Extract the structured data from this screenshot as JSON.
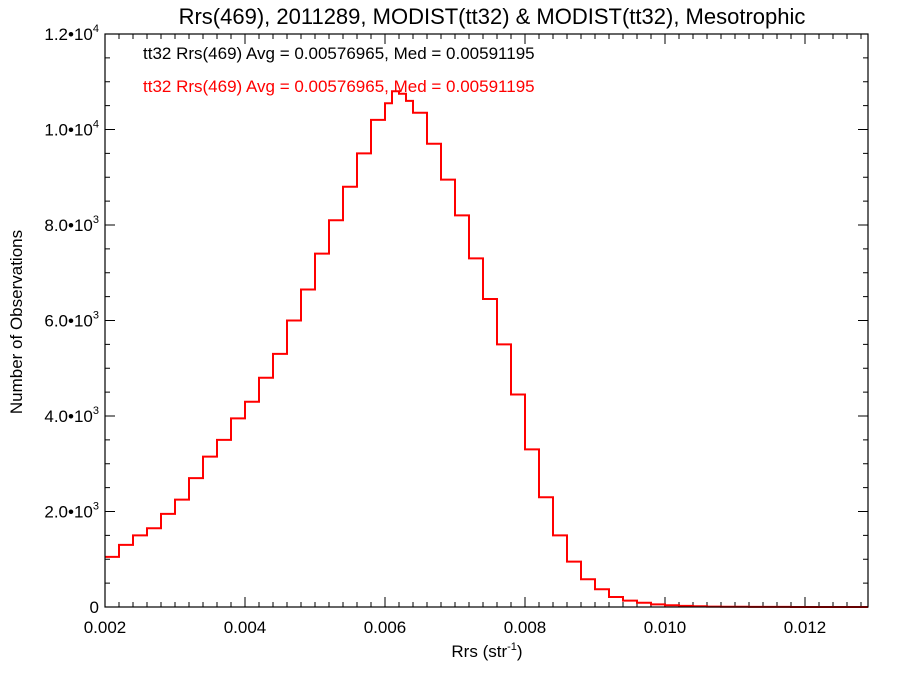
{
  "chart_data": {
    "type": "line",
    "title": "Rrs(469), 2011289, MODIST(tt32) & MODIST(tt32), Mesotrophic",
    "xlabel_main": "Rrs (str",
    "xlabel_sup": "-1",
    "xlabel_close": ")",
    "ylabel": "Number of Observations",
    "xlim": [
      0.002,
      0.0129
    ],
    "ylim": [
      0,
      12000
    ],
    "x_ticks": [
      {
        "value": 0.002,
        "label": "0.002"
      },
      {
        "value": 0.004,
        "label": "0.004"
      },
      {
        "value": 0.006,
        "label": "0.006"
      },
      {
        "value": 0.008,
        "label": "0.008"
      },
      {
        "value": 0.01,
        "label": "0.010"
      },
      {
        "value": 0.012,
        "label": "0.012"
      }
    ],
    "y_ticks": [
      {
        "value": 0,
        "mant": "0",
        "exp": ""
      },
      {
        "value": 2000,
        "mant": "2.0•10",
        "exp": "3"
      },
      {
        "value": 4000,
        "mant": "4.0•10",
        "exp": "3"
      },
      {
        "value": 6000,
        "mant": "6.0•10",
        "exp": "3"
      },
      {
        "value": 8000,
        "mant": "8.0•10",
        "exp": "3"
      },
      {
        "value": 10000,
        "mant": "1.0•10",
        "exp": "4"
      },
      {
        "value": 12000,
        "mant": "1.2•10",
        "exp": "4"
      }
    ],
    "x_minor_step": 0.0002,
    "y_minor_step": 500,
    "annotations": [
      {
        "text": "tt32 Rrs(469) Avg = 0.00576965, Med = 0.00591195",
        "color": "#000000"
      },
      {
        "text": "tt32 Rrs(469) Avg = 0.00576965, Med = 0.00591195",
        "color": "#ff0000"
      }
    ],
    "series": [
      {
        "color": "#ff0000",
        "x": [
          0.002,
          0.0022,
          0.0024,
          0.0026,
          0.0028,
          0.003,
          0.0032,
          0.0034,
          0.0036,
          0.0038,
          0.004,
          0.0042,
          0.0044,
          0.0046,
          0.0048,
          0.005,
          0.0052,
          0.0054,
          0.0056,
          0.0058,
          0.006,
          0.0061,
          0.0062,
          0.0063,
          0.0064,
          0.0066,
          0.0068,
          0.007,
          0.0072,
          0.0074,
          0.0076,
          0.0078,
          0.008,
          0.0082,
          0.0084,
          0.0086,
          0.0088,
          0.009,
          0.0092,
          0.0094,
          0.0096,
          0.0098,
          0.01,
          0.0102,
          0.0104,
          0.0106,
          0.0108,
          0.011,
          0.0112,
          0.0114,
          0.0116,
          0.0118,
          0.012,
          0.0122,
          0.0124,
          0.0126,
          0.0129
        ],
        "values": [
          1050,
          1300,
          1500,
          1650,
          1950,
          2250,
          2700,
          3150,
          3500,
          3950,
          4300,
          4800,
          5300,
          6000,
          6650,
          7400,
          8100,
          8800,
          9500,
          10200,
          10550,
          10800,
          10750,
          10600,
          10350,
          9700,
          8950,
          8200,
          7300,
          6450,
          5500,
          4450,
          3300,
          2300,
          1500,
          950,
          580,
          370,
          210,
          135,
          90,
          55,
          35,
          22,
          14,
          9,
          6,
          4,
          3,
          2,
          2,
          1,
          1,
          0,
          0,
          0,
          0
        ]
      }
    ]
  }
}
